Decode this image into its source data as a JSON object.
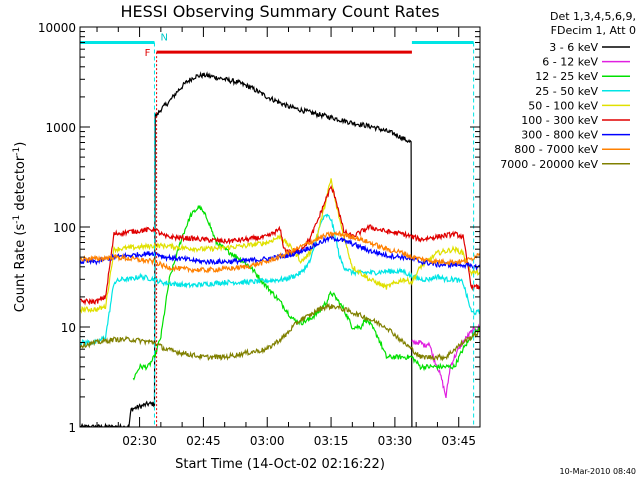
{
  "chart_data": {
    "type": "line",
    "title": "HESSI Observing Summary Count Rates",
    "xlabel": "Start Time (14-Oct-02 02:16:22)",
    "ylabel_main": "Count Rate (s",
    "ylabel_sup1": "-1",
    "ylabel_mid": " detector",
    "ylabel_sup2": "-1",
    "ylabel_end": ")",
    "y_scale": "log",
    "xlim": [
      16,
      110
    ],
    "ylim": [
      1,
      10000
    ],
    "x_ticks": [
      {
        "value": 30,
        "label": "02:30"
      },
      {
        "value": 45,
        "label": "02:45"
      },
      {
        "value": 60,
        "label": "03:00"
      },
      {
        "value": 75,
        "label": "03:15"
      },
      {
        "value": 90,
        "label": "03:30"
      },
      {
        "value": 105,
        "label": "03:45"
      }
    ],
    "y_ticks": [
      {
        "value": 1,
        "label": "1"
      },
      {
        "value": 10,
        "label": "10"
      },
      {
        "value": 100,
        "label": "100"
      },
      {
        "value": 1000,
        "label": "1000"
      },
      {
        "value": 10000,
        "label": "10000"
      }
    ],
    "legend_header": [
      "Det 1,3,4,5,6,9,",
      "FDecim 1, Att 0"
    ],
    "legend_position": "right",
    "footer": "10-Mar-2010 08:40",
    "flag_labels": {
      "F": "F",
      "N": "N"
    },
    "colors": {
      "axes": "#000000",
      "night_bar": "#00e5e5",
      "flare_bar": "#e00000",
      "flare_label": "#e00000",
      "night_label": "#00c8c8"
    },
    "night_intervals": [
      [
        16,
        33.5
      ],
      [
        94,
        108.5
      ]
    ],
    "flare_interval": [
      34,
      94
    ],
    "series": [
      {
        "name": "3 - 6 keV",
        "color": "#000000",
        "x": [
          16,
          27.5,
          28,
          30,
          32,
          33.5,
          34,
          35,
          37,
          39,
          41,
          43,
          45,
          47,
          50,
          53,
          56,
          60,
          65,
          70,
          75,
          80,
          85,
          90,
          93.8,
          94
        ],
        "y": [
          1,
          1,
          1.5,
          1.6,
          1.7,
          1.7,
          1300,
          1500,
          1800,
          2300,
          2800,
          3200,
          3300,
          3200,
          3000,
          2800,
          2500,
          2000,
          1600,
          1400,
          1250,
          1100,
          1000,
          850,
          700,
          1
        ]
      },
      {
        "name": "6 - 12 keV",
        "color": "#e020e0",
        "x": [
          94,
          96,
          97,
          98,
          99,
          100,
          101,
          102,
          103,
          104,
          105,
          106,
          107,
          108,
          110
        ],
        "y": [
          7,
          7,
          6.5,
          7,
          5,
          4,
          3,
          2,
          4,
          5,
          6,
          7,
          8,
          9,
          10
        ]
      },
      {
        "name": "12 - 25 keV",
        "color": "#00e000",
        "x": [
          28.5,
          30,
          32,
          33.5,
          35,
          37,
          40,
          42,
          44,
          46,
          48,
          50,
          53,
          56,
          60,
          63,
          66,
          68,
          70,
          72,
          74,
          75,
          76,
          78,
          80,
          82,
          83,
          84,
          86,
          88,
          90,
          92,
          94,
          96,
          98,
          100,
          102,
          104,
          106,
          108,
          110
        ],
        "y": [
          3,
          4,
          4,
          5,
          8,
          30,
          80,
          130,
          160,
          120,
          70,
          60,
          50,
          40,
          25,
          18,
          12,
          11,
          12,
          14,
          18,
          22,
          20,
          15,
          10,
          10,
          12,
          11,
          8,
          5,
          5,
          5,
          5,
          4,
          4,
          4,
          4,
          4,
          6,
          8,
          10
        ]
      },
      {
        "name": "25 - 50 keV",
        "color": "#00e5e5",
        "x": [
          16,
          20,
          22,
          24,
          26,
          28,
          30,
          33.5,
          35,
          38,
          42,
          46,
          50,
          55,
          60,
          64,
          66,
          68,
          70,
          71,
          72,
          73,
          74,
          75,
          76,
          77,
          78,
          80,
          82,
          85,
          88,
          90,
          92,
          94,
          96,
          98,
          100,
          102,
          104,
          106,
          108,
          110
        ],
        "y": [
          7,
          7,
          8,
          28,
          30,
          30,
          32,
          30,
          28,
          27,
          26,
          27,
          28,
          28,
          29,
          30,
          32,
          35,
          45,
          60,
          90,
          120,
          130,
          120,
          80,
          50,
          40,
          35,
          35,
          35,
          36,
          36,
          36,
          32,
          30,
          30,
          32,
          30,
          30,
          28,
          14,
          14
        ]
      },
      {
        "name": "50 - 100 keV",
        "color": "#e0e000",
        "x": [
          16,
          20,
          22,
          24,
          28,
          33.5,
          36,
          40,
          45,
          50,
          55,
          60,
          63,
          66,
          68,
          70,
          72,
          74,
          75,
          76,
          78,
          80,
          84,
          88,
          92,
          94,
          96,
          100,
          104,
          106,
          108,
          110
        ],
        "y": [
          15,
          15,
          16,
          60,
          62,
          65,
          65,
          62,
          60,
          62,
          65,
          70,
          80,
          60,
          45,
          55,
          90,
          200,
          300,
          180,
          80,
          40,
          30,
          25,
          30,
          28,
          40,
          55,
          60,
          55,
          35,
          35
        ]
      },
      {
        "name": "100 - 300 keV",
        "color": "#e00000",
        "x": [
          16,
          20,
          22,
          24,
          28,
          33.5,
          36,
          40,
          45,
          50,
          55,
          60,
          63,
          64,
          66,
          68,
          70,
          72,
          74,
          75,
          76,
          78,
          80,
          84,
          88,
          92,
          94,
          96,
          100,
          104,
          106,
          108,
          110
        ],
        "y": [
          18,
          18,
          20,
          85,
          90,
          95,
          80,
          78,
          75,
          72,
          75,
          80,
          95,
          60,
          55,
          60,
          75,
          120,
          200,
          250,
          200,
          90,
          80,
          100,
          90,
          85,
          80,
          75,
          80,
          85,
          80,
          25,
          25
        ]
      },
      {
        "name": "300 - 800 keV",
        "color": "#0000ff",
        "x": [
          16,
          20,
          22,
          24,
          28,
          33.5,
          36,
          40,
          45,
          50,
          55,
          60,
          65,
          70,
          73,
          75,
          77,
          80,
          84,
          88,
          92,
          94,
          96,
          100,
          104,
          106,
          108,
          110
        ],
        "y": [
          45,
          45,
          48,
          50,
          52,
          55,
          50,
          48,
          45,
          45,
          46,
          48,
          52,
          62,
          72,
          78,
          75,
          68,
          58,
          52,
          50,
          48,
          45,
          42,
          42,
          42,
          40,
          40
        ]
      },
      {
        "name": "800 - 7000 keV",
        "color": "#ff8000",
        "x": [
          16,
          20,
          24,
          28,
          33.5,
          36,
          40,
          45,
          50,
          55,
          60,
          65,
          70,
          73,
          75,
          77,
          80,
          84,
          88,
          92,
          94,
          96,
          100,
          104,
          106,
          108,
          110
        ],
        "y": [
          48,
          48,
          50,
          48,
          45,
          40,
          38,
          37,
          38,
          40,
          45,
          55,
          70,
          80,
          85,
          85,
          80,
          70,
          60,
          55,
          50,
          48,
          45,
          45,
          45,
          48,
          55
        ]
      },
      {
        "name": "7000 - 20000 keV",
        "color": "#808000",
        "x": [
          16,
          20,
          24,
          28,
          33.5,
          36,
          40,
          45,
          50,
          55,
          60,
          62,
          64,
          66,
          68,
          70,
          72,
          74,
          76,
          78,
          80,
          82,
          84,
          88,
          92,
          94,
          96,
          98,
          100,
          102,
          104,
          106,
          108,
          110
        ],
        "y": [
          6.5,
          7,
          7.5,
          7.5,
          7,
          6,
          5.5,
          5,
          5,
          5.5,
          6,
          7,
          8,
          10,
          12,
          13,
          15,
          16,
          16,
          15,
          14,
          13,
          12,
          10,
          7,
          6,
          5,
          5,
          5,
          5,
          6,
          7,
          8,
          9
        ]
      }
    ]
  }
}
